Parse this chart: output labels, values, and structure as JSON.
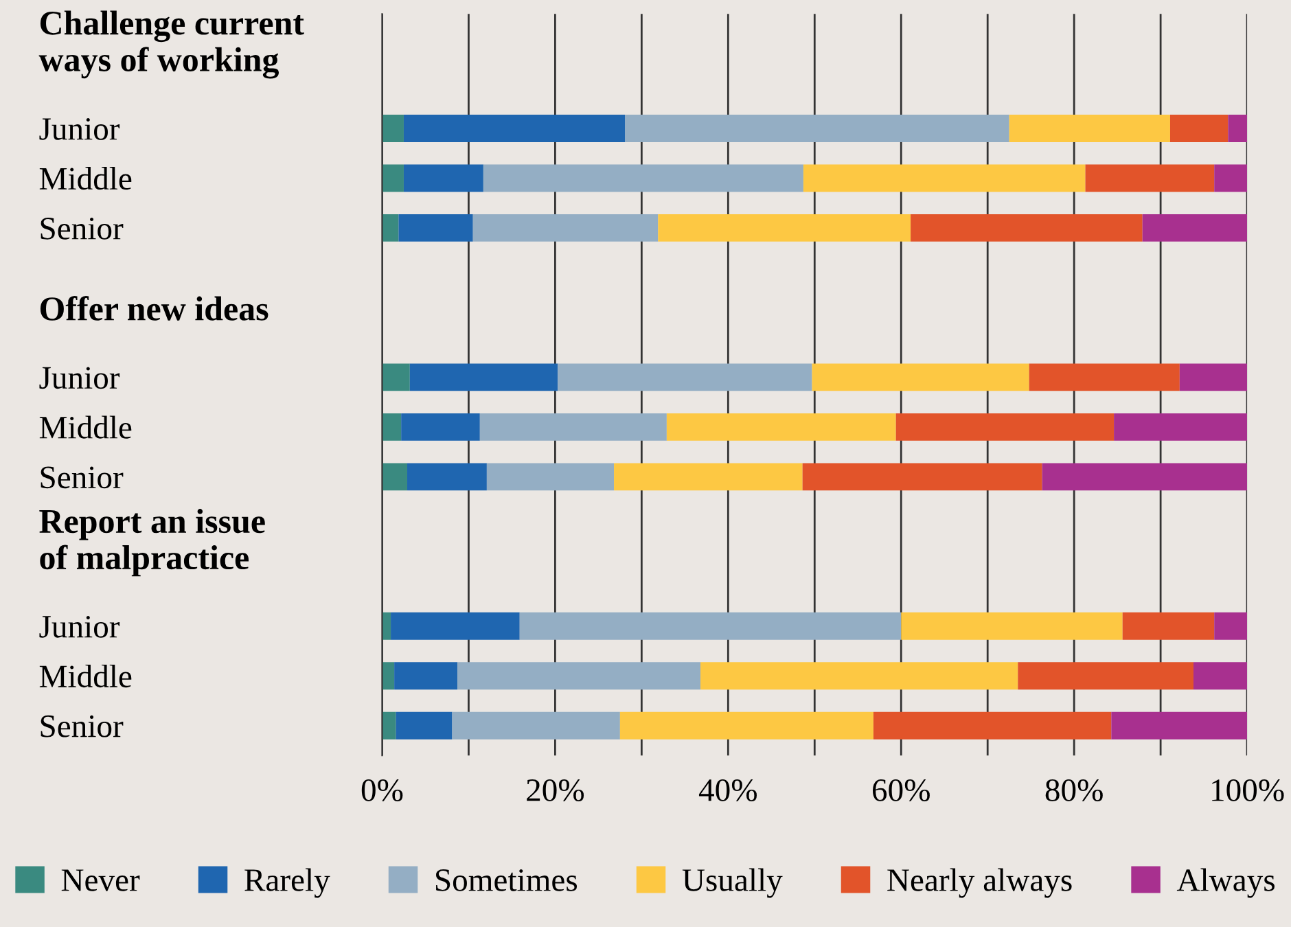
{
  "chart_data": {
    "type": "bar",
    "orientation": "horizontal",
    "stacked": true,
    "categories": [
      "Challenge current\nways of working",
      "Junior",
      "Middle",
      "Senior",
      null,
      "Offer new ideas",
      "Junior",
      "Middle",
      "Senior",
      null,
      "Report an issue\nof malpractice",
      "Junior",
      "Middle",
      "Senior"
    ],
    "series": [
      {
        "name": "Never",
        "color": "#3a8a80",
        "values": [
          null,
          2.5,
          2.5,
          1.9,
          null,
          null,
          3.2,
          2.2,
          2.9,
          null,
          null,
          1.0,
          1.4,
          1.6
        ]
      },
      {
        "name": "Rarely",
        "color": "#1f66b0",
        "values": [
          null,
          25.6,
          9.2,
          8.6,
          null,
          null,
          17.1,
          9.1,
          9.2,
          null,
          null,
          14.9,
          7.3,
          6.5
        ]
      },
      {
        "name": "Sometimes",
        "color": "#94aec4",
        "values": [
          null,
          44.4,
          37.0,
          21.4,
          null,
          null,
          29.4,
          21.6,
          14.7,
          null,
          null,
          44.1,
          28.1,
          19.4
        ]
      },
      {
        "name": "Usually",
        "color": "#fdc843",
        "values": [
          null,
          18.6,
          32.6,
          29.2,
          null,
          null,
          25.1,
          26.5,
          21.8,
          null,
          null,
          25.6,
          36.7,
          29.3
        ]
      },
      {
        "name": "Nearly always",
        "color": "#e2542a",
        "values": [
          null,
          6.7,
          14.9,
          26.8,
          null,
          null,
          17.4,
          25.2,
          27.7,
          null,
          null,
          10.6,
          20.3,
          27.5
        ]
      },
      {
        "name": "Always",
        "color": "#a8308f",
        "values": [
          null,
          2.2,
          3.8,
          12.1,
          null,
          null,
          7.8,
          15.4,
          23.7,
          null,
          null,
          3.8,
          6.2,
          15.7
        ]
      }
    ],
    "xlim": [
      0,
      100
    ],
    "xticks": [
      {
        "value": 0,
        "label": "0%"
      },
      {
        "value": 10,
        "label": null
      },
      {
        "value": 20,
        "label": "20%"
      },
      {
        "value": 30,
        "label": null
      },
      {
        "value": 40,
        "label": "40%"
      },
      {
        "value": 50,
        "label": null
      },
      {
        "value": 60,
        "label": "60%"
      },
      {
        "value": 70,
        "label": null
      },
      {
        "value": 80,
        "label": "80%"
      },
      {
        "value": 90,
        "label": null
      },
      {
        "value": 100,
        "label": "100%"
      }
    ],
    "grid": "x",
    "legend": "bottom"
  }
}
